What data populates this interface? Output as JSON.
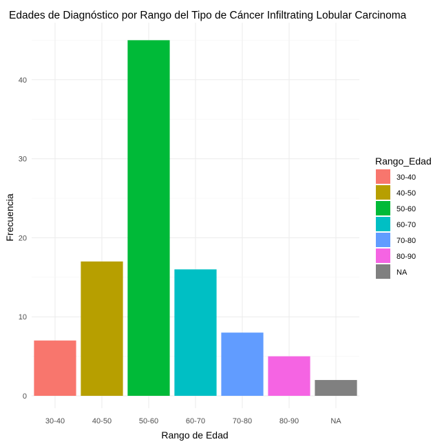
{
  "chart_data": {
    "type": "bar",
    "title": "Edades de Diagnóstico por Rango del Tipo de Cáncer Infiltrating Lobular Carcinoma",
    "xlabel": "Rango de Edad",
    "ylabel": "Frecuencia",
    "categories": [
      "30-40",
      "40-50",
      "50-60",
      "60-70",
      "70-80",
      "80-90",
      "NA"
    ],
    "values": [
      7,
      17,
      45,
      16,
      8,
      5,
      2
    ],
    "colors": [
      "#F8766D",
      "#B79F00",
      "#00BA38",
      "#00BFC4",
      "#619CFF",
      "#F564E3",
      "#808080"
    ],
    "yticks": [
      0,
      10,
      20,
      30,
      40
    ],
    "ylim": [
      0,
      47
    ],
    "grid": true,
    "legend": {
      "title": "Rango_Edad",
      "position": "right",
      "entries": [
        "30-40",
        "40-50",
        "50-60",
        "60-70",
        "70-80",
        "80-90",
        "NA"
      ]
    }
  }
}
